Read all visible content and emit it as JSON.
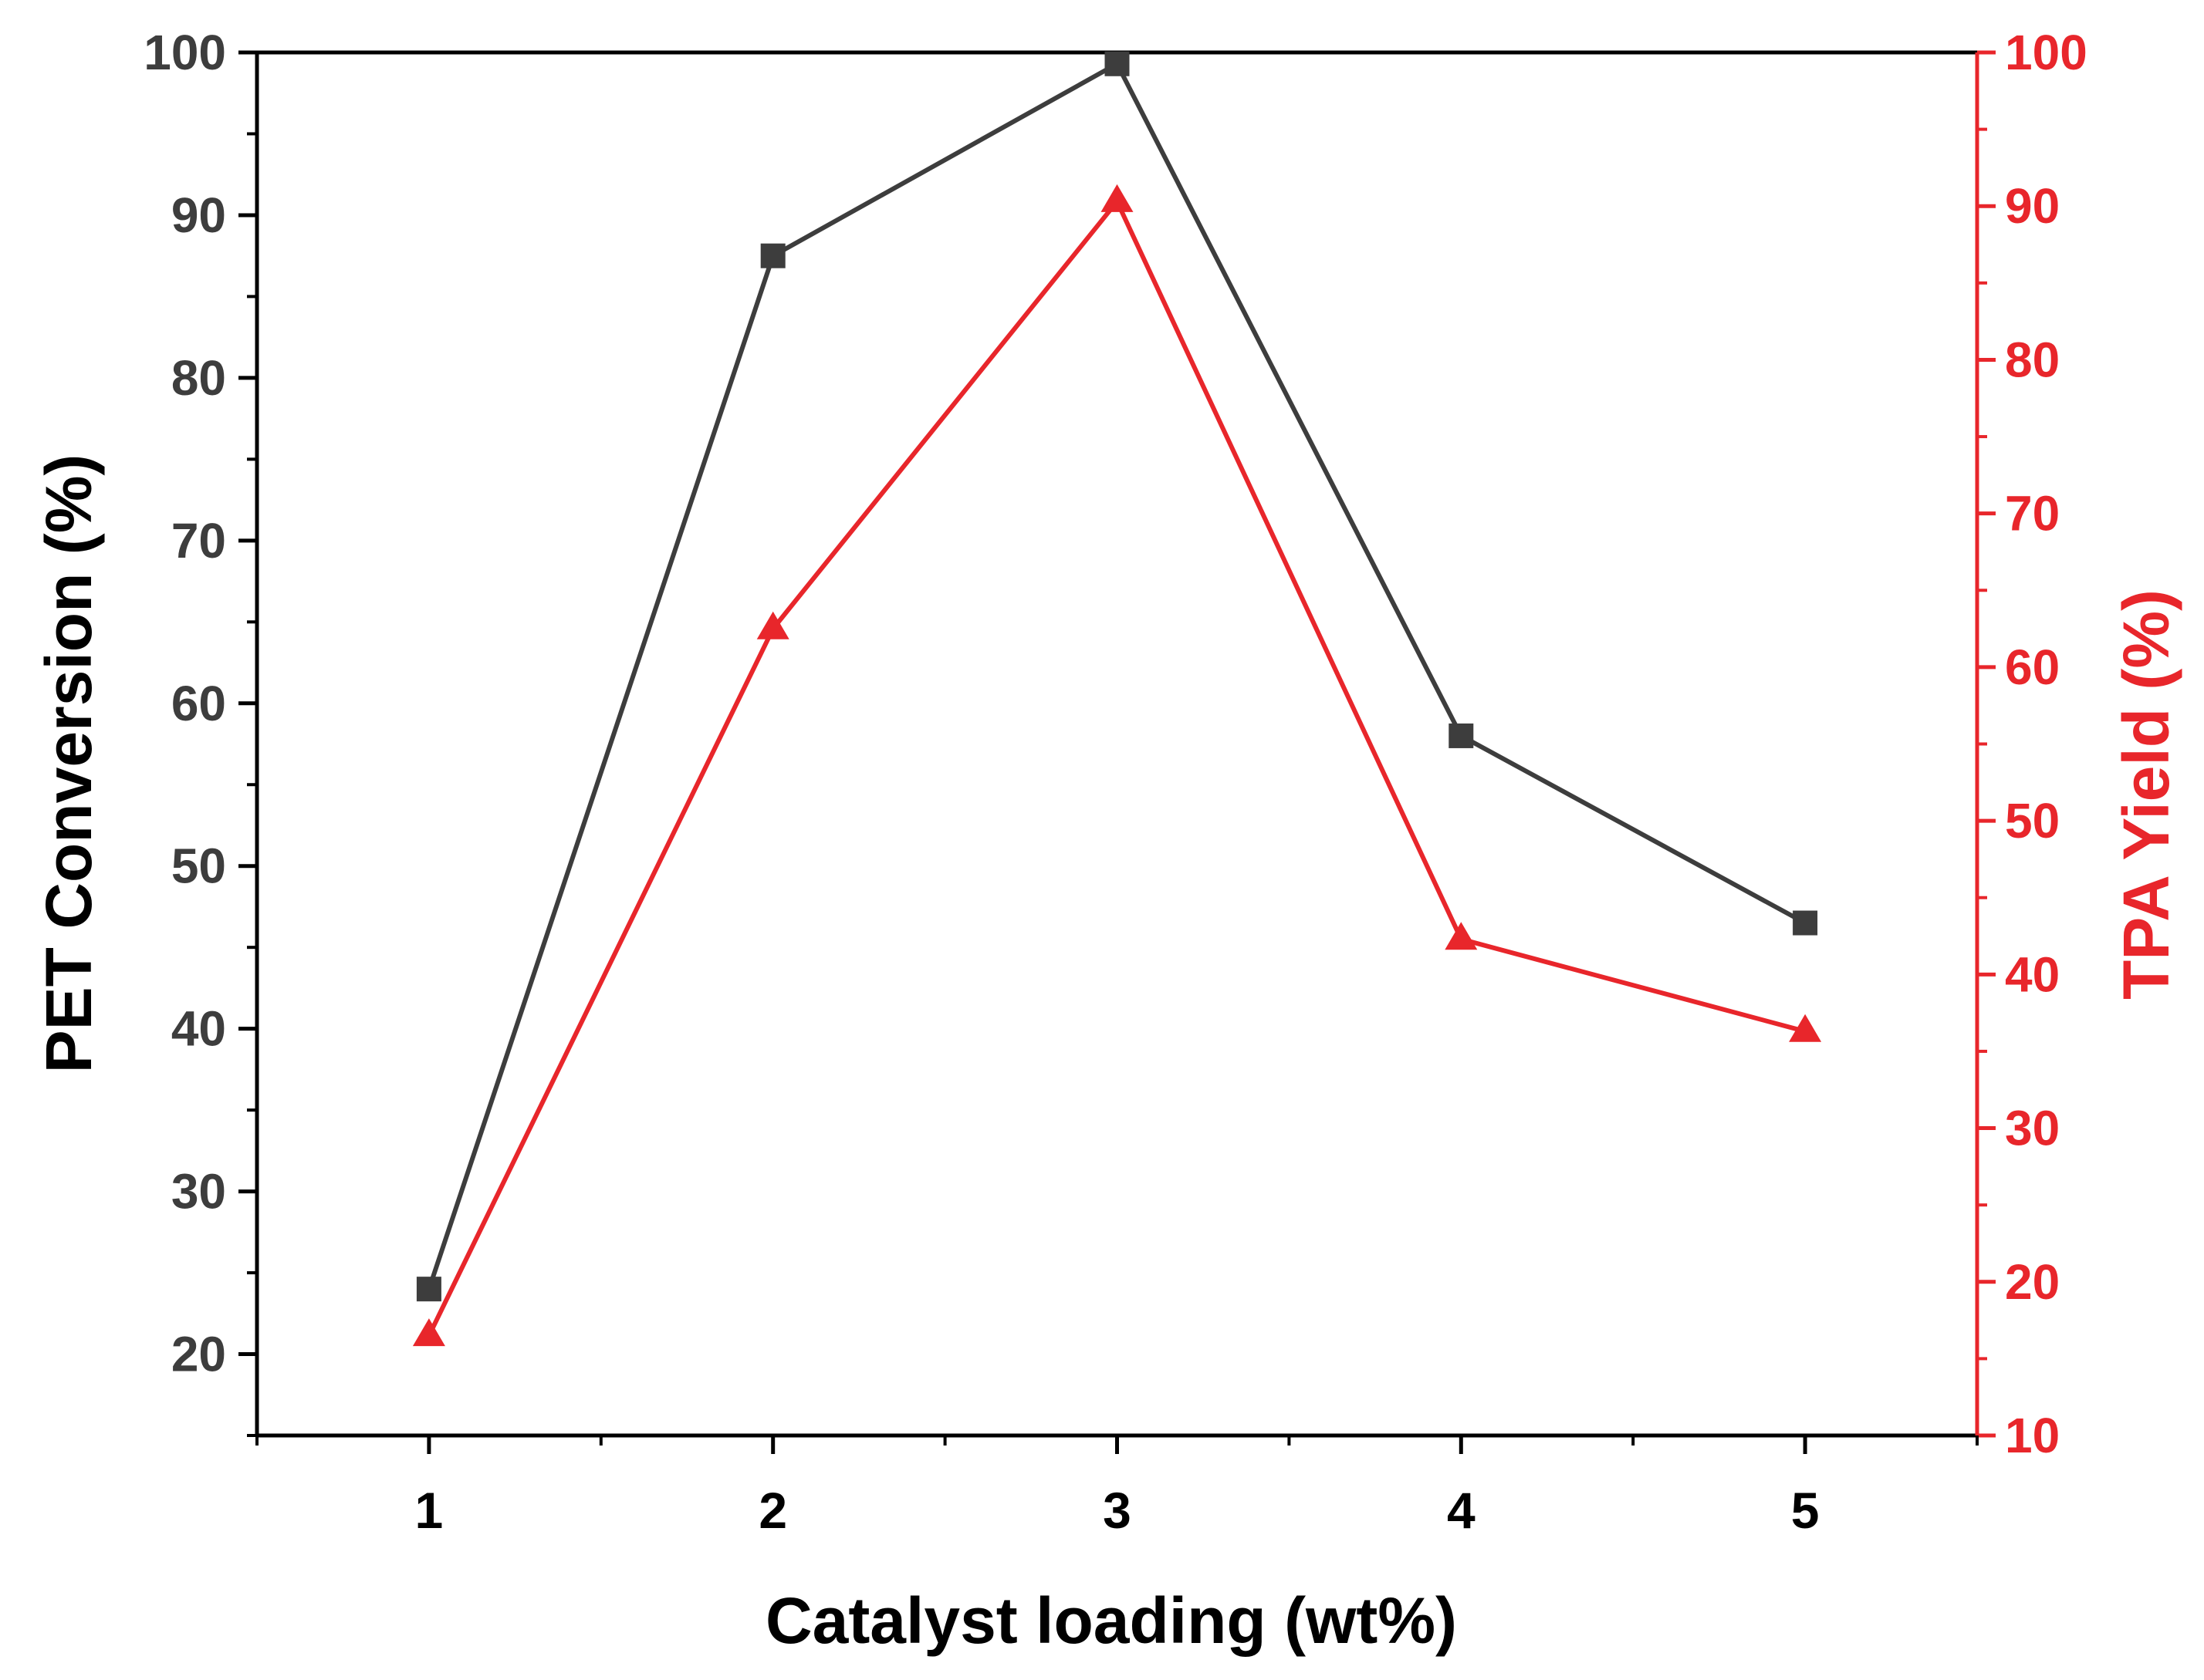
{
  "chart_data": {
    "type": "line",
    "xlabel": "Catalyst loading (wt%)",
    "x": [
      1,
      2,
      3,
      4,
      5
    ],
    "xlim": [
      0.5,
      5.5
    ],
    "x_ticks": [
      "1",
      "2",
      "3",
      "4",
      "5"
    ],
    "y_left": {
      "label": "PET Conversion (%)",
      "ylim": [
        15,
        100
      ],
      "ticks": [
        "20",
        "30",
        "40",
        "50",
        "60",
        "70",
        "80",
        "90",
        "100"
      ],
      "color": "#3d3d3d"
    },
    "y_right": {
      "label": "TPA Yield (%)",
      "ylim": [
        10,
        100
      ],
      "ticks": [
        "10",
        "20",
        "30",
        "40",
        "50",
        "60",
        "70",
        "80",
        "90",
        "100"
      ],
      "color": "#e8262b"
    },
    "series": [
      {
        "name": "PET Conversion",
        "axis": "left",
        "marker": "square",
        "color": "#3d3d3d",
        "values": [
          24.0,
          87.5,
          99.3,
          58.0,
          46.5
        ]
      },
      {
        "name": "TPA Yield",
        "axis": "right",
        "marker": "triangle",
        "color": "#e8262b",
        "values": [
          16.5,
          62.5,
          90.3,
          42.3,
          36.3
        ]
      }
    ],
    "grid": false,
    "legend": "none"
  }
}
